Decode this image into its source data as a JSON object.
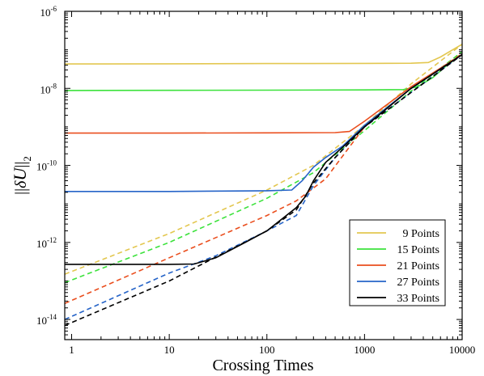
{
  "chart_data": {
    "type": "line",
    "title": "",
    "xlabel": "Crossing Times",
    "ylabel": "||δU||_2",
    "ylabel_parts": {
      "norm_open": "||",
      "delta": "δ",
      "u": "U",
      "norm_close": "||",
      "sub": "2"
    },
    "x_scale": "log",
    "y_scale": "log",
    "xlim": [
      0.85,
      10000
    ],
    "ylim": [
      3e-15,
      1e-06
    ],
    "x_ticks": [
      {
        "value": 1,
        "label": "1"
      },
      {
        "value": 10,
        "label": "10"
      },
      {
        "value": 100,
        "label": "100"
      },
      {
        "value": 1000,
        "label": "1000"
      },
      {
        "value": 10000,
        "label": "10000"
      }
    ],
    "y_ticks": [
      {
        "value": 1e-14,
        "base": "10",
        "exp": "-14"
      },
      {
        "value": 1e-12,
        "base": "10",
        "exp": "-12"
      },
      {
        "value": 1e-10,
        "base": "10",
        "exp": "-10"
      },
      {
        "value": 1e-08,
        "base": "10",
        "exp": "-8"
      },
      {
        "value": 1e-06,
        "base": "10",
        "exp": "-6"
      }
    ],
    "grid": false,
    "legend_position": "bottom-right",
    "series": [
      {
        "name": "9 Points",
        "color": "#e3c750",
        "solid": [
          [
            0.85,
            4.3e-08
          ],
          [
            10,
            4.35e-08
          ],
          [
            100,
            4.4e-08
          ],
          [
            1000,
            4.45e-08
          ],
          [
            3000,
            4.5e-08
          ],
          [
            4500,
            4.7e-08
          ],
          [
            6000,
            6.5e-08
          ],
          [
            8000,
            1e-07
          ],
          [
            10000,
            1.4e-07
          ]
        ],
        "dashed": [
          [
            0.85,
            1.5e-13
          ],
          [
            10,
            1.7e-12
          ],
          [
            100,
            2.3e-11
          ],
          [
            300,
            1e-10
          ],
          [
            1000,
            1.1e-09
          ],
          [
            3000,
            1.3e-08
          ],
          [
            10000,
            1.4e-07
          ]
        ]
      },
      {
        "name": "15 Points",
        "color": "#3ce23c",
        "solid": [
          [
            0.85,
            8.8e-09
          ],
          [
            10,
            8.9e-09
          ],
          [
            100,
            9e-09
          ],
          [
            1000,
            9.1e-09
          ],
          [
            2500,
            9.3e-09
          ],
          [
            3500,
            1.1e-08
          ],
          [
            5000,
            1.9e-08
          ],
          [
            7000,
            4e-08
          ],
          [
            10000,
            7.6e-08
          ]
        ],
        "dashed": [
          [
            0.85,
            9e-14
          ],
          [
            10,
            1e-12
          ],
          [
            100,
            1.4e-11
          ],
          [
            300,
            6.5e-11
          ],
          [
            1000,
            8e-10
          ],
          [
            3000,
            8.5e-09
          ],
          [
            10000,
            9e-08
          ]
        ]
      },
      {
        "name": "21 Points",
        "color": "#ea4e1e",
        "solid": [
          [
            0.85,
            6.9e-10
          ],
          [
            10,
            6.9e-10
          ],
          [
            100,
            7e-10
          ],
          [
            500,
            7.1e-10
          ],
          [
            700,
            7.6e-10
          ],
          [
            1000,
            1.4e-09
          ],
          [
            3000,
            1.1e-08
          ],
          [
            10000,
            7.6e-08
          ]
        ],
        "dashed": [
          [
            0.85,
            2.6e-14
          ],
          [
            10,
            4e-13
          ],
          [
            100,
            5e-12
          ],
          [
            200,
            1.2e-11
          ],
          [
            400,
            4.5e-11
          ],
          [
            700,
            3e-10
          ],
          [
            1000,
            1e-09
          ],
          [
            3000,
            1e-08
          ],
          [
            10000,
            8e-08
          ]
        ]
      },
      {
        "name": "27 Points",
        "color": "#2664c8",
        "solid": [
          [
            0.85,
            2.1e-11
          ],
          [
            10,
            2.1e-11
          ],
          [
            100,
            2.2e-11
          ],
          [
            180,
            2.3e-11
          ],
          [
            230,
            4e-11
          ],
          [
            300,
            9e-11
          ],
          [
            400,
            1.6e-10
          ],
          [
            600,
            3.2e-10
          ],
          [
            1000,
            1.1e-09
          ],
          [
            3000,
            1e-08
          ],
          [
            10000,
            7.5e-08
          ]
        ],
        "dashed": [
          [
            0.85,
            1e-14
          ],
          [
            10,
            1.6e-13
          ],
          [
            30,
            4.5e-13
          ],
          [
            100,
            2e-12
          ],
          [
            200,
            5e-12
          ],
          [
            300,
            3e-11
          ],
          [
            500,
            1.6e-10
          ],
          [
            1000,
            1e-09
          ],
          [
            10000,
            7.5e-08
          ]
        ]
      },
      {
        "name": "33 Points",
        "color": "#000000",
        "solid": [
          [
            0.85,
            2.7e-13
          ],
          [
            10,
            2.7e-13
          ],
          [
            18,
            2.75e-13
          ],
          [
            30,
            4e-13
          ],
          [
            60,
            1e-12
          ],
          [
            100,
            2e-12
          ],
          [
            200,
            8e-12
          ],
          [
            250,
            1.6e-11
          ],
          [
            300,
            4e-11
          ],
          [
            400,
            1.2e-10
          ],
          [
            600,
            3e-10
          ],
          [
            1000,
            1e-09
          ],
          [
            3000,
            1e-08
          ],
          [
            10000,
            7.5e-08
          ]
        ],
        "dashed": [
          [
            0.85,
            7e-15
          ],
          [
            10,
            1e-13
          ],
          [
            100,
            2e-12
          ],
          [
            200,
            7e-12
          ],
          [
            300,
            3.5e-11
          ],
          [
            500,
            1.6e-10
          ],
          [
            1000,
            1e-09
          ],
          [
            10000,
            7.5e-08
          ]
        ]
      }
    ]
  }
}
